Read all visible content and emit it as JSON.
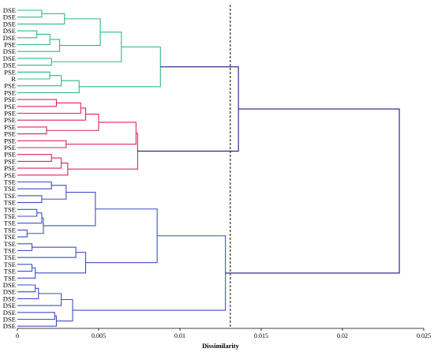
{
  "chart_data": {
    "type": "dendrogram",
    "orientation": "horizontal",
    "title": "",
    "xlabel": "Dissimilarity",
    "ylabel": "",
    "xlim": [
      0,
      0.025
    ],
    "x_ticks": [
      {
        "value": 0,
        "label": "0"
      },
      {
        "value": 0.005,
        "label": "0.005"
      },
      {
        "value": 0.01,
        "label": "0.01"
      },
      {
        "value": 0.015,
        "label": "0.015"
      },
      {
        "value": 0.02,
        "label": "0.02"
      },
      {
        "value": 0.025,
        "label": "0.025"
      }
    ],
    "cut_line": {
      "value": 0.0131,
      "style": "dashed"
    },
    "leaves": [
      "DSE",
      "DSE",
      "DSE",
      "DSE",
      "DSE",
      "PSE",
      "DSE",
      "DSE",
      "DSE",
      "PSE",
      "R",
      "PSE",
      "PSE",
      "PSE",
      "PSE",
      "PSE",
      "PSE",
      "PSE",
      "PSE",
      "PSE",
      "PSE",
      "PSE",
      "PSE",
      "PSE",
      "PSE",
      "TSE",
      "TSE",
      "TSE",
      "TSE",
      "TSE",
      "TSE",
      "TSE",
      "TSE",
      "TSE",
      "TSE",
      "TSE",
      "TSE",
      "TSE",
      "TSE",
      "TSE",
      "DSE",
      "DSE",
      "DSE",
      "DSE",
      "DSE",
      "DSE",
      "DSE"
    ],
    "colors": {
      "green": "#2bb989",
      "pink": "#e0235f",
      "blue": "#3f4fc4",
      "navy": "#1a1f7a"
    },
    "merges": [
      {
        "a": "L0",
        "b": "L1",
        "h": 0.0015,
        "color": "green"
      },
      {
        "a": "M0",
        "b": "L2",
        "h": 0.0029,
        "color": "green"
      },
      {
        "a": "L3",
        "b": "L4",
        "h": 0.0012,
        "color": "green"
      },
      {
        "a": "M2",
        "b": "L5",
        "h": 0.002,
        "color": "green"
      },
      {
        "a": "M3",
        "b": "L6",
        "h": 0.0026,
        "color": "green"
      },
      {
        "a": "M1",
        "b": "M4",
        "h": 0.0051,
        "color": "green"
      },
      {
        "a": "L7",
        "b": "L8",
        "h": 0.0021,
        "color": "green"
      },
      {
        "a": "M5",
        "b": "M6",
        "h": 0.0064,
        "color": "green"
      },
      {
        "a": "L9",
        "b": "L10",
        "h": 0.002,
        "color": "green"
      },
      {
        "a": "M8",
        "b": "L11",
        "h": 0.0027,
        "color": "green"
      },
      {
        "a": "M9",
        "b": "L12",
        "h": 0.0038,
        "color": "green"
      },
      {
        "a": "M7",
        "b": "M10",
        "h": 0.0088,
        "color": "green"
      },
      {
        "a": "L13",
        "b": "L14",
        "h": 0.0024,
        "color": "pink"
      },
      {
        "a": "M12",
        "b": "L15",
        "h": 0.0039,
        "color": "pink"
      },
      {
        "a": "M13",
        "b": "L16",
        "h": 0.0042,
        "color": "pink"
      },
      {
        "a": "L17",
        "b": "L18",
        "h": 0.0018,
        "color": "pink"
      },
      {
        "a": "M14",
        "b": "M15",
        "h": 0.005,
        "color": "pink"
      },
      {
        "a": "L19",
        "b": "L20",
        "h": 0.003,
        "color": "pink"
      },
      {
        "a": "M16",
        "b": "M17",
        "h": 0.0073,
        "color": "pink"
      },
      {
        "a": "L21",
        "b": "L22",
        "h": 0.0021,
        "color": "pink"
      },
      {
        "a": "M19",
        "b": "L23",
        "h": 0.0027,
        "color": "pink"
      },
      {
        "a": "M20",
        "b": "L24",
        "h": 0.0031,
        "color": "pink"
      },
      {
        "a": "M18",
        "b": "M21",
        "h": 0.0074,
        "color": "pink"
      },
      {
        "a": "M11",
        "b": "M22",
        "h": 0.0136,
        "color": "navy"
      },
      {
        "a": "L25",
        "b": "L26",
        "h": 0.0021,
        "color": "blue"
      },
      {
        "a": "L27",
        "b": "L28",
        "h": 0.0015,
        "color": "blue"
      },
      {
        "a": "M24",
        "b": "M25",
        "h": 0.003,
        "color": "blue"
      },
      {
        "a": "L29",
        "b": "L30",
        "h": 0.0012,
        "color": "blue"
      },
      {
        "a": "M27",
        "b": "L31",
        "h": 0.0015,
        "color": "blue"
      },
      {
        "a": "L32",
        "b": "L33",
        "h": 0.0006,
        "color": "blue"
      },
      {
        "a": "M28",
        "b": "M29",
        "h": 0.0016,
        "color": "blue"
      },
      {
        "a": "M26",
        "b": "M30",
        "h": 0.0048,
        "color": "blue"
      },
      {
        "a": "L34",
        "b": "L35",
        "h": 0.0009,
        "color": "blue"
      },
      {
        "a": "M32",
        "b": "L36",
        "h": 0.0036,
        "color": "blue"
      },
      {
        "a": "L37",
        "b": "L38",
        "h": 0.0009,
        "color": "blue"
      },
      {
        "a": "M34",
        "b": "L39",
        "h": 0.0011,
        "color": "blue"
      },
      {
        "a": "M33",
        "b": "M35",
        "h": 0.0042,
        "color": "blue"
      },
      {
        "a": "M31",
        "b": "M36",
        "h": 0.0086,
        "color": "blue"
      },
      {
        "a": "L40",
        "b": "L41",
        "h": 0.0011,
        "color": "blue"
      },
      {
        "a": "M38",
        "b": "L42",
        "h": 0.0013,
        "color": "blue"
      },
      {
        "a": "M39",
        "b": "L43",
        "h": 0.0027,
        "color": "blue"
      },
      {
        "a": "L44",
        "b": "L45",
        "h": 0.0023,
        "color": "blue"
      },
      {
        "a": "M41",
        "b": "L46",
        "h": 0.0024,
        "color": "blue"
      },
      {
        "a": "M40",
        "b": "M42",
        "h": 0.0034,
        "color": "blue"
      },
      {
        "a": "M37",
        "b": "M43",
        "h": 0.0128,
        "color": "blue"
      },
      {
        "a": "M23",
        "b": "M44",
        "h": 0.0235,
        "color": "navy"
      }
    ]
  }
}
